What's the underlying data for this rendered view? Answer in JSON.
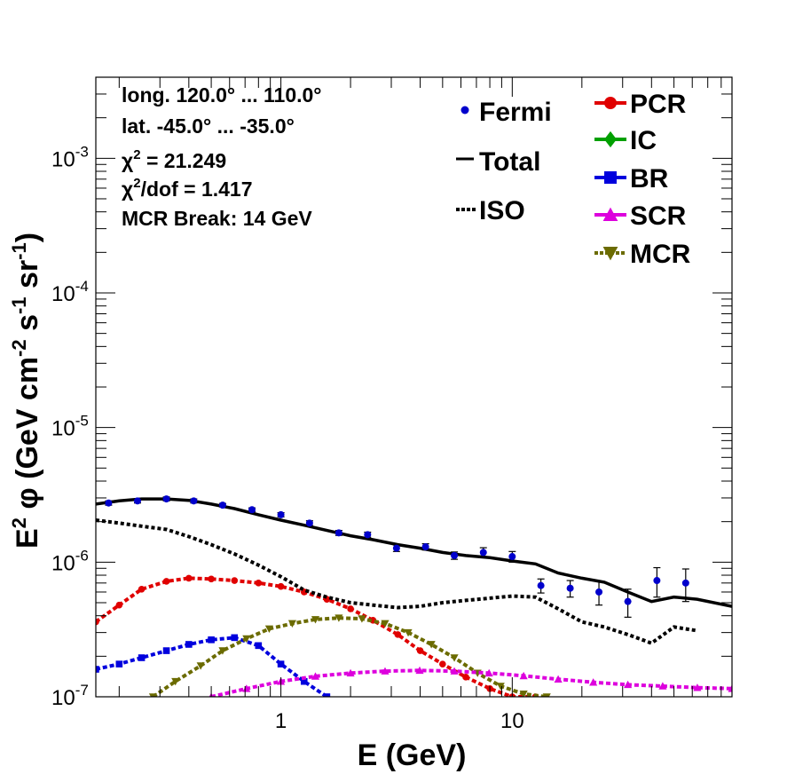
{
  "info": {
    "long": "long. 120.0° ... 110.0°",
    "lat": "lat. -45.0° ... -35.0°",
    "chi2_prefix": "χ",
    "chi2_value": " = 21.249",
    "chi2dof_prefix": "χ",
    "chi2dof_value": "/dof = 1.417",
    "break": "MCR Break: 14 GeV"
  },
  "chart_data": {
    "type": "line",
    "xlabel": "E (GeV)",
    "ylabel": "E² φ (GeV cm⁻² s⁻¹ sr⁻¹)",
    "xlog": true,
    "ylog": true,
    "xlim": [
      0.1585,
      89.1
    ],
    "ylim": [
      1e-07,
      0.004
    ],
    "x_ticks": [
      {
        "value": 1,
        "label": "1"
      },
      {
        "value": 10,
        "label": "10"
      }
    ],
    "y_ticks": [
      {
        "value": 1e-07,
        "base": "10",
        "exp": "-7"
      },
      {
        "value": 1e-06,
        "base": "10",
        "exp": "-6"
      },
      {
        "value": 1e-05,
        "base": "10",
        "exp": "-5"
      },
      {
        "value": 0.0001,
        "base": "10",
        "exp": "-4"
      },
      {
        "value": 0.001,
        "base": "10",
        "exp": "-3"
      }
    ],
    "legend_left": [
      {
        "name": "Fermi",
        "style": "dot"
      },
      {
        "name": "Total",
        "style": "line"
      },
      {
        "name": "ISO",
        "style": "dotted"
      }
    ],
    "legend_right": [
      {
        "name": "PCR",
        "color": "#e00000",
        "marker": "circle"
      },
      {
        "name": "IC",
        "color": "#00a000",
        "marker": "diamond"
      },
      {
        "name": "BR",
        "color": "#0000dd",
        "marker": "square"
      },
      {
        "name": "SCR",
        "color": "#dd00dd",
        "marker": "triangle-up"
      },
      {
        "name": "MCR",
        "color": "#6b6b00",
        "marker": "triangle-down"
      }
    ],
    "fermi": {
      "color": "#0000cc",
      "points": [
        {
          "x": 0.18,
          "y": 2.75e-06,
          "err": 1e-07
        },
        {
          "x": 0.24,
          "y": 2.85e-06,
          "err": 1e-07
        },
        {
          "x": 0.32,
          "y": 2.95e-06,
          "err": 1e-07
        },
        {
          "x": 0.42,
          "y": 2.85e-06,
          "err": 1e-07
        },
        {
          "x": 0.56,
          "y": 2.65e-06,
          "err": 8e-08
        },
        {
          "x": 0.75,
          "y": 2.45e-06,
          "err": 8e-08
        },
        {
          "x": 1.0,
          "y": 2.25e-06,
          "err": 8e-08
        },
        {
          "x": 1.33,
          "y": 1.95e-06,
          "err": 8e-08
        },
        {
          "x": 1.78,
          "y": 1.65e-06,
          "err": 7e-08
        },
        {
          "x": 2.37,
          "y": 1.6e-06,
          "err": 7e-08
        },
        {
          "x": 3.16,
          "y": 1.27e-06,
          "err": 7e-08
        },
        {
          "x": 4.22,
          "y": 1.3e-06,
          "err": 7e-08
        },
        {
          "x": 5.62,
          "y": 1.12e-06,
          "err": 7e-08
        },
        {
          "x": 7.5,
          "y": 1.18e-06,
          "err": 1e-07
        },
        {
          "x": 10.0,
          "y": 1.1e-06,
          "err": 1e-07
        },
        {
          "x": 13.3,
          "y": 6.7e-07,
          "err": 8e-08
        },
        {
          "x": 17.8,
          "y": 6.4e-07,
          "err": 9e-08
        },
        {
          "x": 23.7,
          "y": 6e-07,
          "err": 1.2e-07
        },
        {
          "x": 31.6,
          "y": 5.1e-07,
          "err": 1.2e-07
        },
        {
          "x": 42.2,
          "y": 7.3e-07,
          "err": 1.8e-07
        },
        {
          "x": 56.2,
          "y": 7e-07,
          "err": 1.9e-07
        }
      ]
    },
    "total": {
      "x": [
        0.1585,
        0.2,
        0.25,
        0.32,
        0.4,
        0.5,
        0.63,
        0.8,
        1.0,
        1.26,
        1.58,
        2.0,
        2.5,
        3.2,
        4.0,
        5.0,
        6.3,
        8.0,
        10.0,
        12.6,
        15.8,
        20.0,
        25.0,
        31.6,
        40.0,
        50.0,
        63.0,
        89.1
      ],
      "y": [
        2.7e-06,
        2.85e-06,
        2.95e-06,
        2.95e-06,
        2.88e-06,
        2.7e-06,
        2.5e-06,
        2.25e-06,
        2.05e-06,
        1.88e-06,
        1.72e-06,
        1.57e-06,
        1.47e-06,
        1.35e-06,
        1.27e-06,
        1.18e-06,
        1.12e-06,
        1.08e-06,
        1.02e-06,
        9.7e-07,
        8.3e-07,
        7.6e-07,
        7.1e-07,
        6e-07,
        5.1e-07,
        5.5e-07,
        5.3e-07,
        4.7e-07
      ]
    },
    "iso": {
      "x": [
        0.1585,
        0.2,
        0.25,
        0.32,
        0.4,
        0.5,
        0.63,
        0.8,
        1.0,
        1.26,
        1.58,
        2.0,
        2.5,
        3.2,
        4.0,
        5.0,
        6.3,
        8.0,
        10.0,
        12.6,
        15.8,
        20.0,
        25.0,
        31.6,
        40.0,
        50.0,
        63.0
      ],
      "y": [
        2.05e-06,
        1.95e-06,
        1.85e-06,
        1.75e-06,
        1.55e-06,
        1.35e-06,
        1.15e-06,
        9.5e-07,
        7.8e-07,
        6.2e-07,
        5.5e-07,
        5e-07,
        4.8e-07,
        4.6e-07,
        4.7e-07,
        5e-07,
        5.2e-07,
        5.4e-07,
        5.6e-07,
        5.5e-07,
        4.5e-07,
        3.6e-07,
        3.3e-07,
        2.9e-07,
        2.5e-07,
        3.3e-07,
        3.1e-07
      ]
    },
    "components": [
      {
        "name": "PCR",
        "color": "#e00000",
        "marker": "circle",
        "x": [
          0.1585,
          0.2,
          0.25,
          0.32,
          0.4,
          0.5,
          0.63,
          0.8,
          1.0,
          1.26,
          1.58,
          2.0,
          2.5,
          3.2,
          4.0,
          5.0,
          6.3,
          8.0,
          10.0,
          12.6
        ],
        "y": [
          3.6e-07,
          4.8e-07,
          6.3e-07,
          7.2e-07,
          7.6e-07,
          7.5e-07,
          7.3e-07,
          7e-07,
          6.6e-07,
          6e-07,
          5.3e-07,
          4.5e-07,
          3.7e-07,
          2.9e-07,
          2.2e-07,
          1.75e-07,
          1.4e-07,
          1.15e-07,
          1e-07,
          1e-07
        ]
      },
      {
        "name": "BR",
        "color": "#0000dd",
        "marker": "square",
        "x": [
          0.1585,
          0.2,
          0.25,
          0.32,
          0.4,
          0.5,
          0.63,
          0.8,
          1.0,
          1.26,
          1.58
        ],
        "y": [
          1.6e-07,
          1.75e-07,
          1.95e-07,
          2.2e-07,
          2.45e-07,
          2.65e-07,
          2.75e-07,
          2.4e-07,
          1.75e-07,
          1.3e-07,
          1e-07
        ]
      },
      {
        "name": "MCR",
        "color": "#6b6b00",
        "marker": "triangle-down",
        "x": [
          0.28,
          0.35,
          0.45,
          0.56,
          0.71,
          0.89,
          1.12,
          1.41,
          1.78,
          2.24,
          2.82,
          3.55,
          4.47,
          5.62,
          7.08,
          8.91,
          11.2,
          14.1
        ],
        "y": [
          1e-07,
          1.3e-07,
          1.7e-07,
          2.2e-07,
          2.7e-07,
          3.2e-07,
          3.5e-07,
          3.75e-07,
          3.85e-07,
          3.8e-07,
          3.5e-07,
          3e-07,
          2.45e-07,
          1.95e-07,
          1.5e-07,
          1.2e-07,
          1.05e-07,
          1e-07
        ]
      },
      {
        "name": "SCR",
        "color": "#dd00dd",
        "marker": "triangle-up",
        "x": [
          0.5,
          0.71,
          1.0,
          1.41,
          2.0,
          2.82,
          3.98,
          5.62,
          7.94,
          11.2,
          15.8,
          22.4,
          31.6,
          44.7,
          63.1,
          89.1
        ],
        "y": [
          1e-07,
          1.15e-07,
          1.3e-07,
          1.42e-07,
          1.5e-07,
          1.55e-07,
          1.57e-07,
          1.55e-07,
          1.5e-07,
          1.43e-07,
          1.35e-07,
          1.28e-07,
          1.23e-07,
          1.2e-07,
          1.17e-07,
          1.15e-07
        ]
      }
    ]
  }
}
